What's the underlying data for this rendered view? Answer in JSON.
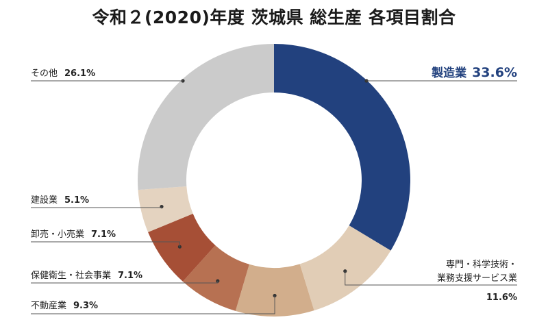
{
  "chart_data": {
    "type": "pie",
    "title": "令和２(2020)年度 茨城県 総生産 各項目割合",
    "slices": [
      {
        "label": "製造業",
        "value_text": "33.6%",
        "value": 33.6,
        "color": "#22417e",
        "highlight": true
      },
      {
        "label_lines": [
          "専門・科学技術・",
          "業務支援サービス業"
        ],
        "value_text": "11.6%",
        "value": 11.6,
        "color": "#e1cdb6"
      },
      {
        "label": "不動産業",
        "value_text": "9.3%",
        "value": 9.3,
        "color": "#d2ae8c"
      },
      {
        "label": "保健衛生・社会事業",
        "value_text": "7.1%",
        "value": 7.1,
        "color": "#b77152"
      },
      {
        "label": "卸売・小売業",
        "value_text": "7.1%",
        "value": 7.1,
        "color": "#a64f36"
      },
      {
        "label": "建設業",
        "value_text": "5.1%",
        "value": 5.1,
        "color": "#e4d3c0"
      },
      {
        "label": "その他",
        "value_text": "26.1%",
        "value": 26.1,
        "color": "#cbcbcb"
      }
    ]
  }
}
